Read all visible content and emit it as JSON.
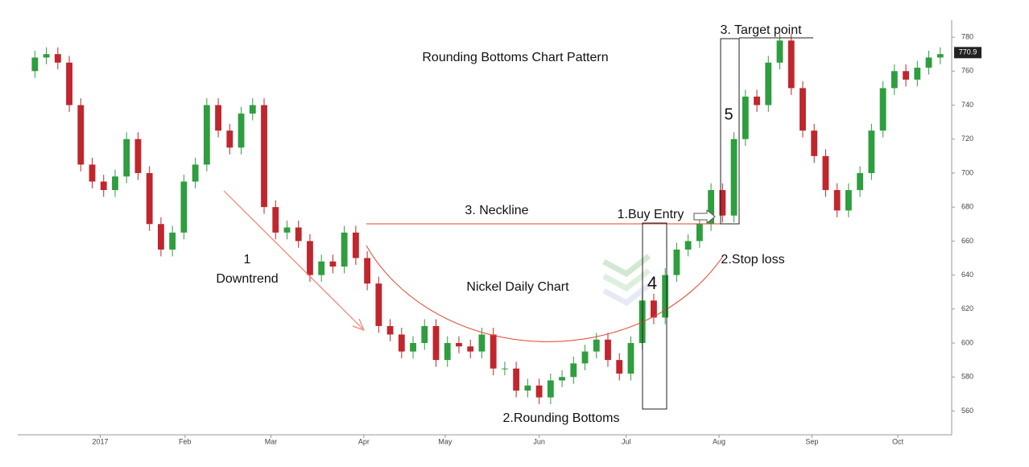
{
  "chart_data": {
    "type": "candlestick",
    "title": "Rounding Bottoms Chart Pattern",
    "annotations": [
      "3. Target point",
      "3. Neckline",
      "1.Buy Entry",
      "2.Stop loss",
      "1",
      "Downtrend",
      "Nickel Daily Chart",
      "4",
      "5",
      "2.Rounding Bottoms"
    ],
    "up_color": "#2e9e3f",
    "down_color": "#c0262d",
    "x": [
      0,
      1,
      2,
      3,
      4,
      5,
      6,
      7,
      8,
      9,
      10,
      11,
      12,
      13,
      14,
      15,
      16,
      17,
      18,
      19,
      20,
      21,
      22,
      23,
      24,
      25,
      26,
      27,
      28,
      29,
      30,
      31,
      32,
      33,
      34,
      35,
      36,
      37,
      38,
      39,
      40,
      41,
      42,
      43,
      44,
      45,
      46,
      47,
      48,
      49,
      50,
      51,
      52,
      53,
      54,
      55,
      56,
      57,
      58,
      59,
      60,
      61,
      62,
      63,
      64,
      65,
      66,
      67,
      68,
      69,
      70,
      71,
      72,
      73,
      74,
      75,
      76,
      77,
      78,
      79
    ],
    "open": [
      760,
      768,
      770,
      765,
      740,
      705,
      695,
      690,
      698,
      720,
      700,
      670,
      655,
      665,
      695,
      705,
      740,
      725,
      715,
      735,
      740,
      680,
      665,
      668,
      660,
      640,
      648,
      645,
      665,
      650,
      635,
      610,
      605,
      595,
      600,
      610,
      590,
      600,
      598,
      595,
      605,
      585,
      585,
      572,
      575,
      568,
      578,
      580,
      588,
      595,
      602,
      590,
      582,
      600,
      625,
      615,
      640,
      655,
      660,
      670,
      690,
      675,
      720,
      745,
      740,
      765,
      778,
      750,
      725,
      710,
      690,
      678,
      690,
      700,
      725,
      750,
      760,
      755,
      762,
      768
    ],
    "high": [
      772,
      774,
      774,
      769,
      744,
      709,
      699,
      702,
      724,
      724,
      704,
      674,
      669,
      699,
      709,
      744,
      744,
      729,
      739,
      744,
      744,
      684,
      672,
      672,
      664,
      652,
      652,
      669,
      669,
      654,
      639,
      614,
      609,
      604,
      614,
      614,
      604,
      604,
      602,
      609,
      609,
      589,
      589,
      579,
      579,
      582,
      584,
      592,
      599,
      606,
      606,
      594,
      604,
      629,
      629,
      644,
      659,
      664,
      674,
      694,
      694,
      724,
      749,
      749,
      769,
      782,
      782,
      754,
      729,
      714,
      694,
      694,
      704,
      729,
      754,
      764,
      764,
      766,
      772,
      774
    ],
    "low": [
      756,
      764,
      761,
      736,
      701,
      691,
      686,
      686,
      694,
      696,
      666,
      651,
      651,
      661,
      691,
      701,
      721,
      711,
      711,
      731,
      676,
      661,
      661,
      656,
      636,
      636,
      641,
      641,
      646,
      631,
      606,
      601,
      591,
      591,
      596,
      586,
      586,
      594,
      591,
      591,
      581,
      581,
      568,
      568,
      564,
      564,
      574,
      576,
      584,
      591,
      586,
      578,
      578,
      596,
      611,
      611,
      636,
      651,
      656,
      666,
      671,
      671,
      716,
      736,
      736,
      761,
      746,
      721,
      706,
      686,
      674,
      674,
      686,
      696,
      721,
      746,
      751,
      751,
      758,
      764
    ],
    "close": [
      768,
      770,
      765,
      740,
      705,
      695,
      690,
      698,
      720,
      700,
      670,
      655,
      665,
      695,
      705,
      740,
      725,
      715,
      735,
      740,
      680,
      665,
      668,
      660,
      640,
      648,
      645,
      665,
      650,
      635,
      610,
      605,
      595,
      600,
      610,
      590,
      600,
      598,
      595,
      605,
      585,
      585,
      572,
      575,
      568,
      578,
      580,
      588,
      595,
      602,
      590,
      582,
      600,
      625,
      615,
      640,
      655,
      660,
      670,
      690,
      675,
      720,
      745,
      740,
      765,
      778,
      750,
      725,
      710,
      690,
      678,
      690,
      700,
      725,
      750,
      760,
      755,
      762,
      768,
      770
    ],
    "last_price": 770.9,
    "xlim": [
      -1.5,
      80
    ],
    "xticks": [
      {
        "value": 5.7,
        "label": "2017"
      },
      {
        "value": 13.1,
        "label": "Feb"
      },
      {
        "value": 20.6,
        "label": "Mar"
      },
      {
        "value": 28.7,
        "label": "Apr"
      },
      {
        "value": 35.8,
        "label": "May"
      },
      {
        "value": 44,
        "label": "Jun"
      },
      {
        "value": 51.6,
        "label": "Jul"
      },
      {
        "value": 59.7,
        "label": "Aug"
      },
      {
        "value": 67.8,
        "label": "Sep"
      },
      {
        "value": 75.3,
        "label": "Oct"
      }
    ],
    "ylim": [
      546,
      790
    ],
    "yticks": [
      560,
      580,
      600,
      620,
      640,
      660,
      680,
      700,
      720,
      740,
      760,
      780
    ]
  }
}
